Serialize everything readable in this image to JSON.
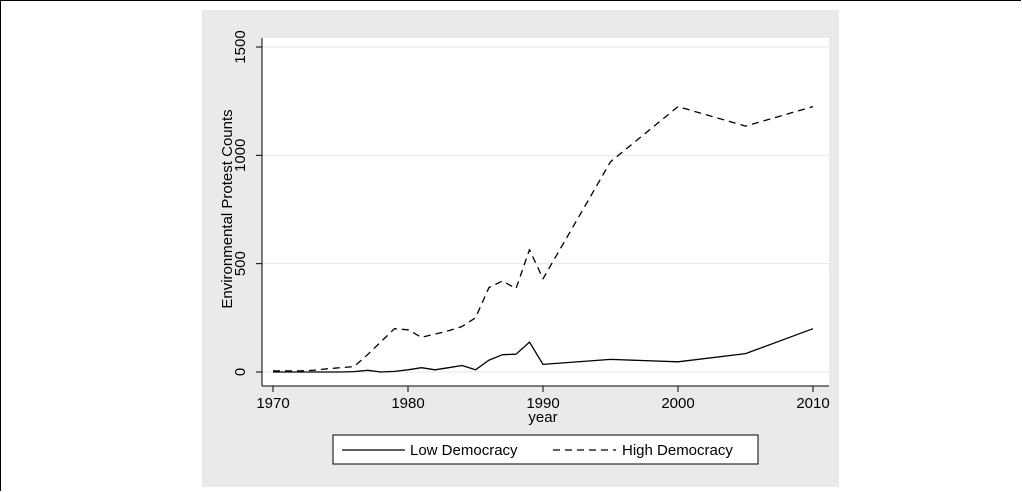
{
  "chart_data": {
    "type": "line",
    "title": "",
    "xlabel": "year",
    "ylabel": "Environmental Protest Counts",
    "xlim": [
      1970,
      2010
    ],
    "ylim": [
      0,
      1500
    ],
    "xticks": [
      1970,
      1980,
      1990,
      2000,
      2010
    ],
    "yticks": [
      0,
      500,
      1000,
      1500
    ],
    "grid": true,
    "legend_position": "bottom",
    "colors": {
      "panel_background": "#eaeaea",
      "plot_background": "#ffffff",
      "gridline": "#e6e6e6",
      "line": "#000000"
    },
    "series": [
      {
        "name": "Low Democracy",
        "style": "solid",
        "x": [
          1970,
          1971,
          1972,
          1973,
          1974,
          1975,
          1976,
          1977,
          1978,
          1979,
          1980,
          1981,
          1982,
          1983,
          1984,
          1985,
          1986,
          1987,
          1988,
          1989,
          1990,
          1995,
          2000,
          2005,
          2010
        ],
        "y": [
          0,
          0,
          0,
          0,
          0,
          0,
          2,
          8,
          0,
          3,
          10,
          20,
          10,
          20,
          30,
          10,
          55,
          80,
          82,
          138,
          35,
          58,
          47,
          85,
          200
        ]
      },
      {
        "name": "High Democracy",
        "style": "dashed",
        "x": [
          1970,
          1971,
          1972,
          1973,
          1974,
          1975,
          1976,
          1977,
          1978,
          1979,
          1980,
          1981,
          1982,
          1983,
          1984,
          1985,
          1986,
          1987,
          1988,
          1989,
          1990,
          1995,
          2000,
          2005,
          2010
        ],
        "y": [
          5,
          5,
          5,
          8,
          15,
          20,
          25,
          80,
          140,
          200,
          195,
          160,
          175,
          190,
          210,
          250,
          390,
          420,
          385,
          565,
          430,
          970,
          1225,
          1135,
          1225
        ]
      }
    ]
  }
}
